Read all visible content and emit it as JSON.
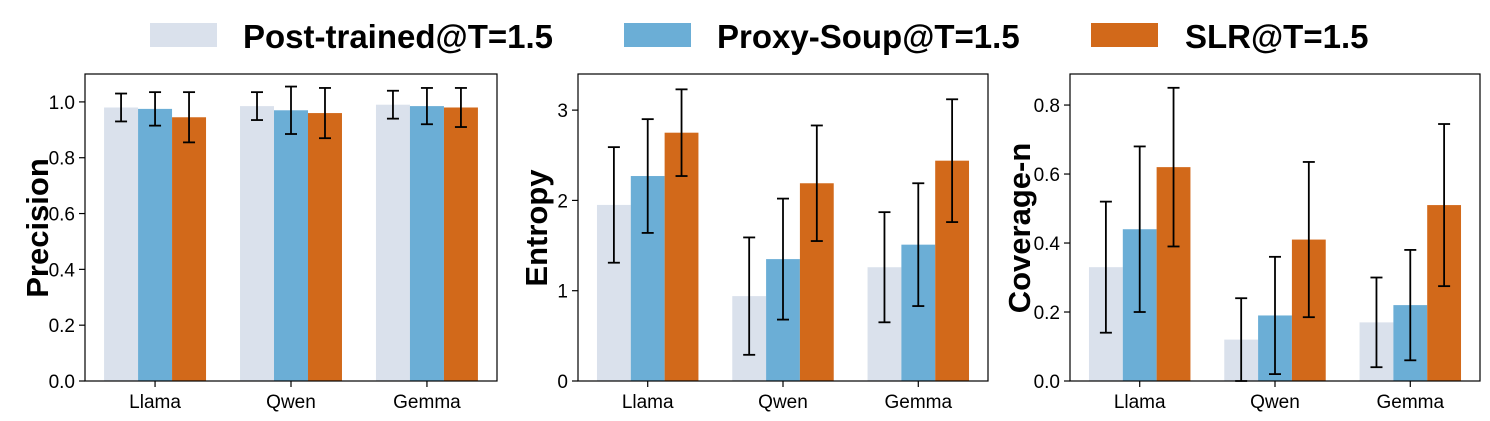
{
  "legend": [
    {
      "label": "Post-trained@T=1.5",
      "color": "#dae1ec"
    },
    {
      "label": "Proxy-Soup@T=1.5",
      "color": "#6baed6"
    },
    {
      "label": "SLR@T=1.5",
      "color": "#d2691a"
    }
  ],
  "chart_data": [
    {
      "type": "bar",
      "ylabel": "Precision",
      "categories": [
        "Llama",
        "Qwen",
        "Gemma"
      ],
      "ylim": [
        0,
        1.1
      ],
      "yticks": [
        0.0,
        0.2,
        0.4,
        0.6,
        0.8,
        1.0
      ],
      "ytick_labels": [
        "0.0",
        "0.2",
        "0.4",
        "0.6",
        "0.8",
        "1.0"
      ],
      "series": [
        {
          "name": "Post-trained@T=1.5",
          "values": [
            0.98,
            0.985,
            0.99
          ],
          "err": [
            0.05,
            0.05,
            0.05
          ]
        },
        {
          "name": "Proxy-Soup@T=1.5",
          "values": [
            0.975,
            0.97,
            0.985
          ],
          "err": [
            0.06,
            0.085,
            0.065
          ]
        },
        {
          "name": "SLR@T=1.5",
          "values": [
            0.945,
            0.96,
            0.98
          ],
          "err": [
            0.09,
            0.09,
            0.07
          ]
        }
      ]
    },
    {
      "type": "bar",
      "ylabel": "Entropy",
      "categories": [
        "Llama",
        "Qwen",
        "Gemma"
      ],
      "ylim": [
        0,
        3.4
      ],
      "yticks": [
        0,
        1,
        2,
        3
      ],
      "ytick_labels": [
        "0",
        "1",
        "2",
        "3"
      ],
      "series": [
        {
          "name": "Post-trained@T=1.5",
          "values": [
            1.95,
            0.94,
            1.26
          ],
          "err": [
            0.64,
            0.65,
            0.61
          ]
        },
        {
          "name": "Proxy-Soup@T=1.5",
          "values": [
            2.27,
            1.35,
            1.51
          ],
          "err": [
            0.63,
            0.67,
            0.68
          ]
        },
        {
          "name": "SLR@T=1.5",
          "values": [
            2.75,
            2.19,
            2.44
          ],
          "err": [
            0.48,
            0.64,
            0.68
          ]
        }
      ]
    },
    {
      "type": "bar",
      "ylabel": "Coverage-n",
      "categories": [
        "Llama",
        "Qwen",
        "Gemma"
      ],
      "ylim": [
        0,
        0.89
      ],
      "yticks": [
        0.0,
        0.2,
        0.4,
        0.6,
        0.8
      ],
      "ytick_labels": [
        "0.0",
        "0.2",
        "0.4",
        "0.6",
        "0.8"
      ],
      "series": [
        {
          "name": "Post-trained@T=1.5",
          "values": [
            0.33,
            0.12,
            0.17
          ],
          "err": [
            0.19,
            0.12,
            0.13
          ]
        },
        {
          "name": "Proxy-Soup@T=1.5",
          "values": [
            0.44,
            0.19,
            0.22
          ],
          "err": [
            0.24,
            0.17,
            0.16
          ]
        },
        {
          "name": "SLR@T=1.5",
          "values": [
            0.62,
            0.41,
            0.51
          ],
          "err": [
            0.23,
            0.225,
            0.235
          ]
        }
      ]
    }
  ]
}
